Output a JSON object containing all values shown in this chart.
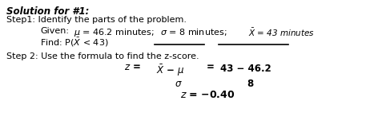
{
  "title": "Solution for #1:",
  "line1": "Step1: Identify the parts of the problem.",
  "given_label": "Given:   ",
  "given_mu": "$\\mu$ = 46.2 minutes;",
  "given_sigma": "$\\sigma$ = 8 minutes;",
  "given_xbar": "$\\bar{X}$ = 43 minutes",
  "find_line": "Find: P($\\bar{X}$ < 43)",
  "step2": "Step 2: Use the formula to find the z-score.",
  "z_label": "$z$ =",
  "num_left": "$\\bar{X}$ − $\\mu$",
  "num_right": "43 − 46.2",
  "den_left": "$\\sigma$",
  "den_right": "8",
  "equals": "=",
  "result": "$z$ = −0.40",
  "bg_color": "#ffffff",
  "text_color": "#000000",
  "fs_title": 8.5,
  "fs_body": 8.0,
  "fs_formula": 8.5
}
